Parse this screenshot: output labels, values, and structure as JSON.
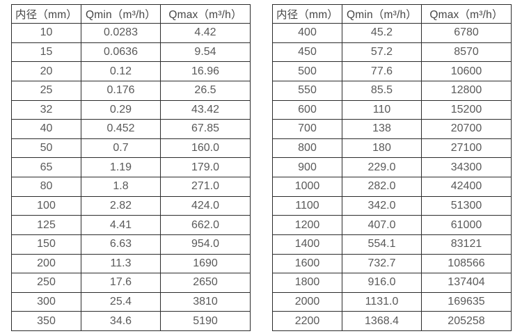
{
  "colors": {
    "background": "#ffffff",
    "border": "#2b2b2b",
    "header_text": "#454545",
    "cell_text": "#595959"
  },
  "tables": [
    {
      "name": "flow-spec-table-small-diameters",
      "headers": [
        "内径（mm）",
        "Qmin（m³/h）",
        "Qmax（m³/h）"
      ],
      "rows": [
        [
          "10",
          "0.0283",
          "4.42"
        ],
        [
          "15",
          "0.0636",
          "9.54"
        ],
        [
          "20",
          "0.12",
          "16.96"
        ],
        [
          "25",
          "0.176",
          "26.5"
        ],
        [
          "32",
          "0.29",
          "43.42"
        ],
        [
          "40",
          "0.452",
          "67.85"
        ],
        [
          "50",
          "0.7",
          "160.0"
        ],
        [
          "65",
          "1.19",
          "179.0"
        ],
        [
          "80",
          "1.8",
          "271.0"
        ],
        [
          "100",
          "2.82",
          "424.0"
        ],
        [
          "125",
          "4.41",
          "662.0"
        ],
        [
          "150",
          "6.63",
          "954.0"
        ],
        [
          "200",
          "11.3",
          "1690"
        ],
        [
          "250",
          "17.6",
          "2650"
        ],
        [
          "300",
          "25.4",
          "3810"
        ],
        [
          "350",
          "34.6",
          "5190"
        ]
      ]
    },
    {
      "name": "flow-spec-table-large-diameters",
      "headers": [
        "内径（mm）",
        "Qmin（m³/h）",
        "Qmax（m³/h）"
      ],
      "rows": [
        [
          "400",
          "45.2",
          "6780"
        ],
        [
          "450",
          "57.2",
          "8570"
        ],
        [
          "500",
          "77.6",
          "10600"
        ],
        [
          "550",
          "85.5",
          "12800"
        ],
        [
          "600",
          "110",
          "15200"
        ],
        [
          "700",
          "138",
          "20700"
        ],
        [
          "800",
          "180",
          "27100"
        ],
        [
          "900",
          "229.0",
          "34300"
        ],
        [
          "1000",
          "282.0",
          "42400"
        ],
        [
          "1100",
          "342.0",
          "51300"
        ],
        [
          "1200",
          "407.0",
          "61000"
        ],
        [
          "1400",
          "554.1",
          "83121"
        ],
        [
          "1600",
          "732.7",
          "108566"
        ],
        [
          "1800",
          "916.0",
          "137404"
        ],
        [
          "2000",
          "1131.0",
          "169635"
        ],
        [
          "2200",
          "1368.4",
          "205258"
        ]
      ]
    }
  ]
}
